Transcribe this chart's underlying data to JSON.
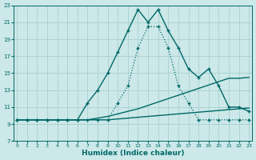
{
  "xlabel": "Humidex (Indice chaleur)",
  "bg_color": "#cce8e8",
  "grid_color": "#a0cccc",
  "line_color": "#006868",
  "xlim_min": -0.3,
  "xlim_max": 23.3,
  "ylim_min": 7,
  "ylim_max": 23,
  "xticks": [
    0,
    1,
    2,
    3,
    4,
    5,
    6,
    7,
    8,
    9,
    10,
    11,
    12,
    13,
    14,
    15,
    16,
    17,
    18,
    19,
    20,
    21,
    22,
    23
  ],
  "yticks": [
    7,
    9,
    11,
    13,
    15,
    17,
    19,
    21,
    23
  ],
  "line_dotted_peaked_x": [
    0,
    1,
    2,
    3,
    4,
    5,
    6,
    7,
    8,
    9,
    10,
    11,
    12,
    13,
    14,
    15,
    16,
    17,
    18,
    19,
    20,
    21,
    22,
    23
  ],
  "line_dotted_peaked_y": [
    9.5,
    9.5,
    9.5,
    9.5,
    9.5,
    9.5,
    9.5,
    9.5,
    9.5,
    9.5,
    11.5,
    13.5,
    18.0,
    20.5,
    20.5,
    18.0,
    13.5,
    11.5,
    9.5,
    9.5,
    9.5,
    9.5,
    9.5,
    9.5
  ],
  "line_solid_peaked_x": [
    0,
    1,
    2,
    3,
    4,
    5,
    6,
    7,
    8,
    9,
    10,
    11,
    12,
    13,
    14,
    15,
    16,
    17,
    18,
    19,
    20,
    21,
    22,
    23
  ],
  "line_solid_peaked_y": [
    9.5,
    9.5,
    9.5,
    9.5,
    9.5,
    9.5,
    9.5,
    11.5,
    13.0,
    15.0,
    17.5,
    20.0,
    22.5,
    21.0,
    22.5,
    20.0,
    18.0,
    15.5,
    14.5,
    15.5,
    13.5,
    11.0,
    11.0,
    10.5
  ],
  "line_upper_flat_x": [
    0,
    1,
    2,
    3,
    4,
    5,
    6,
    7,
    8,
    9,
    10,
    11,
    12,
    13,
    14,
    15,
    16,
    17,
    18,
    19,
    20,
    21,
    22,
    23
  ],
  "line_upper_flat_y": [
    9.5,
    9.5,
    9.5,
    9.5,
    9.5,
    9.5,
    9.5,
    9.5,
    9.7,
    9.9,
    10.2,
    10.5,
    10.8,
    11.2,
    11.6,
    12.0,
    12.4,
    12.8,
    13.2,
    13.6,
    14.0,
    14.4,
    14.4,
    14.5
  ],
  "line_lower_flat_x": [
    0,
    1,
    2,
    3,
    4,
    5,
    6,
    7,
    8,
    9,
    10,
    11,
    12,
    13,
    14,
    15,
    16,
    17,
    18,
    19,
    20,
    21,
    22,
    23
  ],
  "line_lower_flat_y": [
    9.5,
    9.5,
    9.5,
    9.5,
    9.5,
    9.5,
    9.5,
    9.5,
    9.5,
    9.5,
    9.6,
    9.7,
    9.8,
    9.9,
    10.0,
    10.1,
    10.2,
    10.3,
    10.4,
    10.5,
    10.6,
    10.7,
    10.8,
    10.9
  ]
}
